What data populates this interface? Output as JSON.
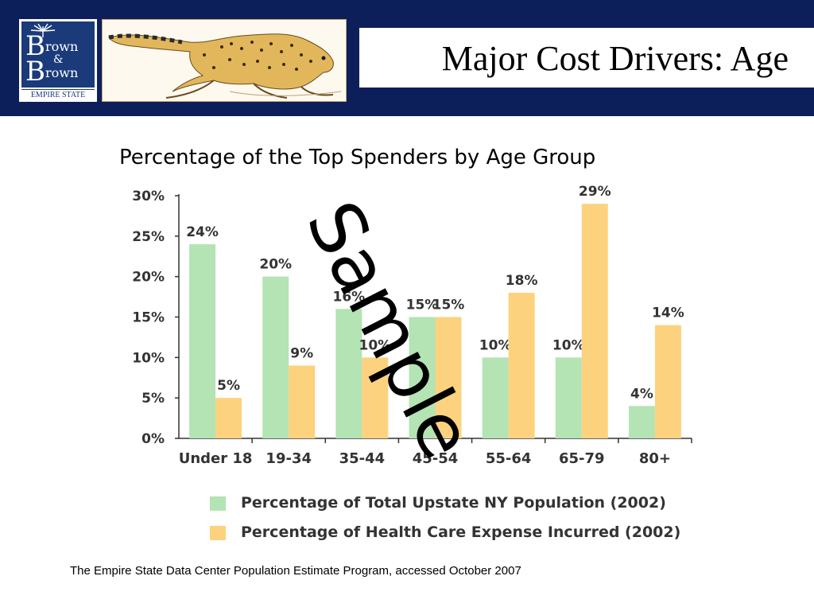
{
  "header": {
    "logo": {
      "letter": "B",
      "word_1": "rown",
      "ampersand": "&",
      "word_2": "rown",
      "footer": "EMPIRE STATE"
    },
    "title": "Major Cost Drivers: Age",
    "colors": {
      "background": "#0d1f5b",
      "logo": "#1b3a7a"
    }
  },
  "chart_data": {
    "type": "bar",
    "title": "Percentage of the Top Spenders by Age Group",
    "categories": [
      "Under 18",
      "19-34",
      "35-44",
      "45-54",
      "55-64",
      "65-79",
      "80+"
    ],
    "series": [
      {
        "name": "Percentage of Total Upstate NY Population (2002)",
        "values": [
          24,
          20,
          16,
          15,
          10,
          10,
          4
        ],
        "color": "#b4e3b4"
      },
      {
        "name": "Percentage of Health Care Expense Incurred (2002)",
        "values": [
          5,
          9,
          10,
          15,
          18,
          29,
          14
        ],
        "color": "#fdd27e"
      }
    ],
    "data_labels": [
      [
        "24%",
        "20%",
        "16%",
        "15%",
        "10%",
        "10%",
        "4%"
      ],
      [
        "5%",
        "9%",
        "10%",
        "15%",
        "18%",
        "29%",
        "14%"
      ]
    ],
    "yticks": [
      "0%",
      "5%",
      "10%",
      "15%",
      "20%",
      "25%",
      "30%"
    ],
    "ylim": [
      0,
      30
    ],
    "grid": false,
    "legend_position": "bottom"
  },
  "source": "The Empire State Data Center Population Estimate Program, accessed October 2007",
  "watermark": "Sample"
}
